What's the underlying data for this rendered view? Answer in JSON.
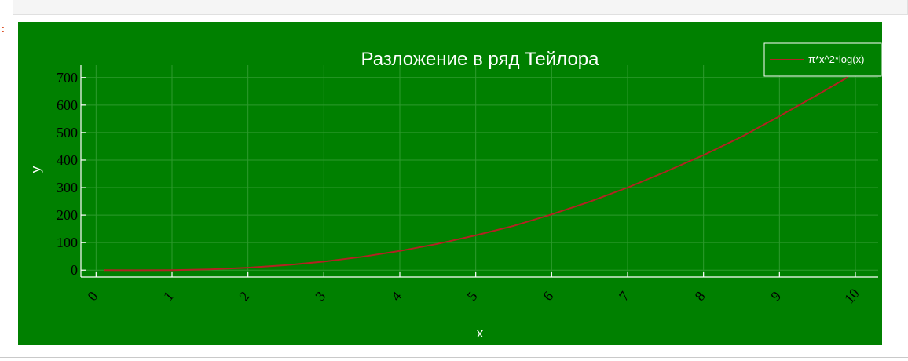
{
  "notebook": {
    "out_prompt": ":"
  },
  "colors": {
    "background": "#008000",
    "line": "#b22222",
    "grid": "#2e9a2e",
    "axis": "#ffffff",
    "title": "#ffffff",
    "tick_labels": "#000000"
  },
  "chart_data": {
    "type": "line",
    "title": "Разложение в ряд Тейлора",
    "xlabel": "x",
    "ylabel": "y",
    "xlim": [
      -0.2,
      10.3
    ],
    "ylim": [
      -25,
      745
    ],
    "xticks": [
      "0",
      "1",
      "2",
      "3",
      "4",
      "5",
      "6",
      "7",
      "8",
      "9",
      "10"
    ],
    "yticks": [
      "0",
      "100",
      "200",
      "300",
      "400",
      "500",
      "600",
      "700"
    ],
    "grid": true,
    "legend_position": "top-right",
    "series": [
      {
        "name": "π*x^2*log(x)",
        "x": [
          0.1,
          0.5,
          1,
          1.5,
          2,
          2.5,
          3,
          3.5,
          4,
          4.5,
          5,
          5.5,
          6,
          6.5,
          7,
          7.5,
          8,
          8.5,
          9,
          9.5,
          9.9
        ],
        "y": [
          -0.07,
          -0.54,
          0,
          2.87,
          8.71,
          18.0,
          31.07,
          48.23,
          69.69,
          95.7,
          126.42,
          160.92,
          202.64,
          248.5,
          300.11,
          357.5,
          418.2,
          484.3,
          559.7,
          637.0,
          701.2
        ]
      }
    ]
  }
}
